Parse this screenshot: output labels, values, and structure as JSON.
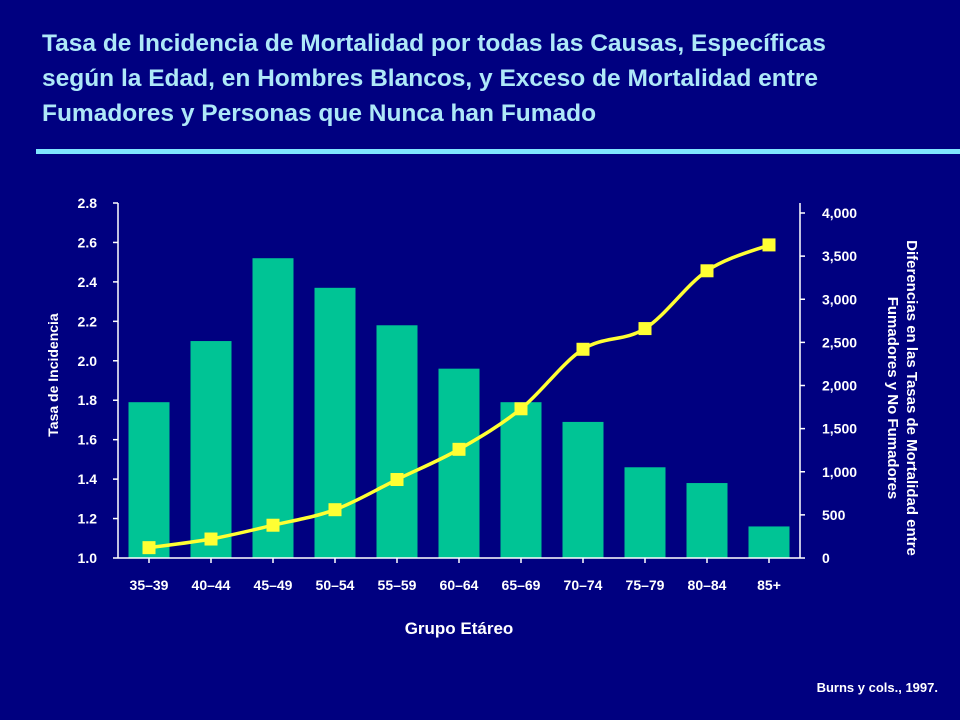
{
  "title_lines": [
    "Tasa de Incidencia de Mortalidad por todas las Causas, Específicas",
    "según la Edad, en Hombres Blancos, y Exceso de Mortalidad entre",
    "Fumadores y Personas que Nunca han Fumado"
  ],
  "credit": "Burns y cols., 1997.",
  "colors": {
    "background": "#000080",
    "title": "#aee8f8",
    "bars": "#00c495",
    "line": "#ffff33",
    "axis": "#ffffff"
  },
  "chart_data": {
    "type": "bar",
    "xlabel": "Grupo Etáreo",
    "ylabel": "Tasa de Incidencia",
    "y2label_lines": [
      "Diferencias en las Tasas de Mortalidad entre",
      "Fumadores y No Fumadores"
    ],
    "categories": [
      "35–39",
      "40–44",
      "45–49",
      "50–54",
      "55–59",
      "60–64",
      "65–69",
      "70–74",
      "75–79",
      "80–84",
      "85+"
    ],
    "ylim": [
      1.0,
      2.8
    ],
    "yticks": [
      "1.0",
      "1.2",
      "1.4",
      "1.6",
      "1.8",
      "2.0",
      "2.2",
      "2.4",
      "2.6",
      "2.8"
    ],
    "y2lim": [
      0,
      4000
    ],
    "y2ticks": [
      "0",
      "500",
      "1,000",
      "1,500",
      "2,000",
      "2,500",
      "3,000",
      "3,500",
      "4,000"
    ],
    "series": [
      {
        "name": "Tasa de Incidencia",
        "type": "bar",
        "axis": "left",
        "values": [
          1.79,
          2.1,
          2.52,
          2.37,
          2.18,
          1.96,
          1.79,
          1.69,
          1.46,
          1.38,
          1.16
        ]
      },
      {
        "name": "Diferencias en las Tasas de Mortalidad",
        "type": "line",
        "axis": "right",
        "values": [
          120,
          220,
          380,
          560,
          910,
          1260,
          1730,
          2420,
          2660,
          3330,
          3630
        ]
      }
    ]
  }
}
